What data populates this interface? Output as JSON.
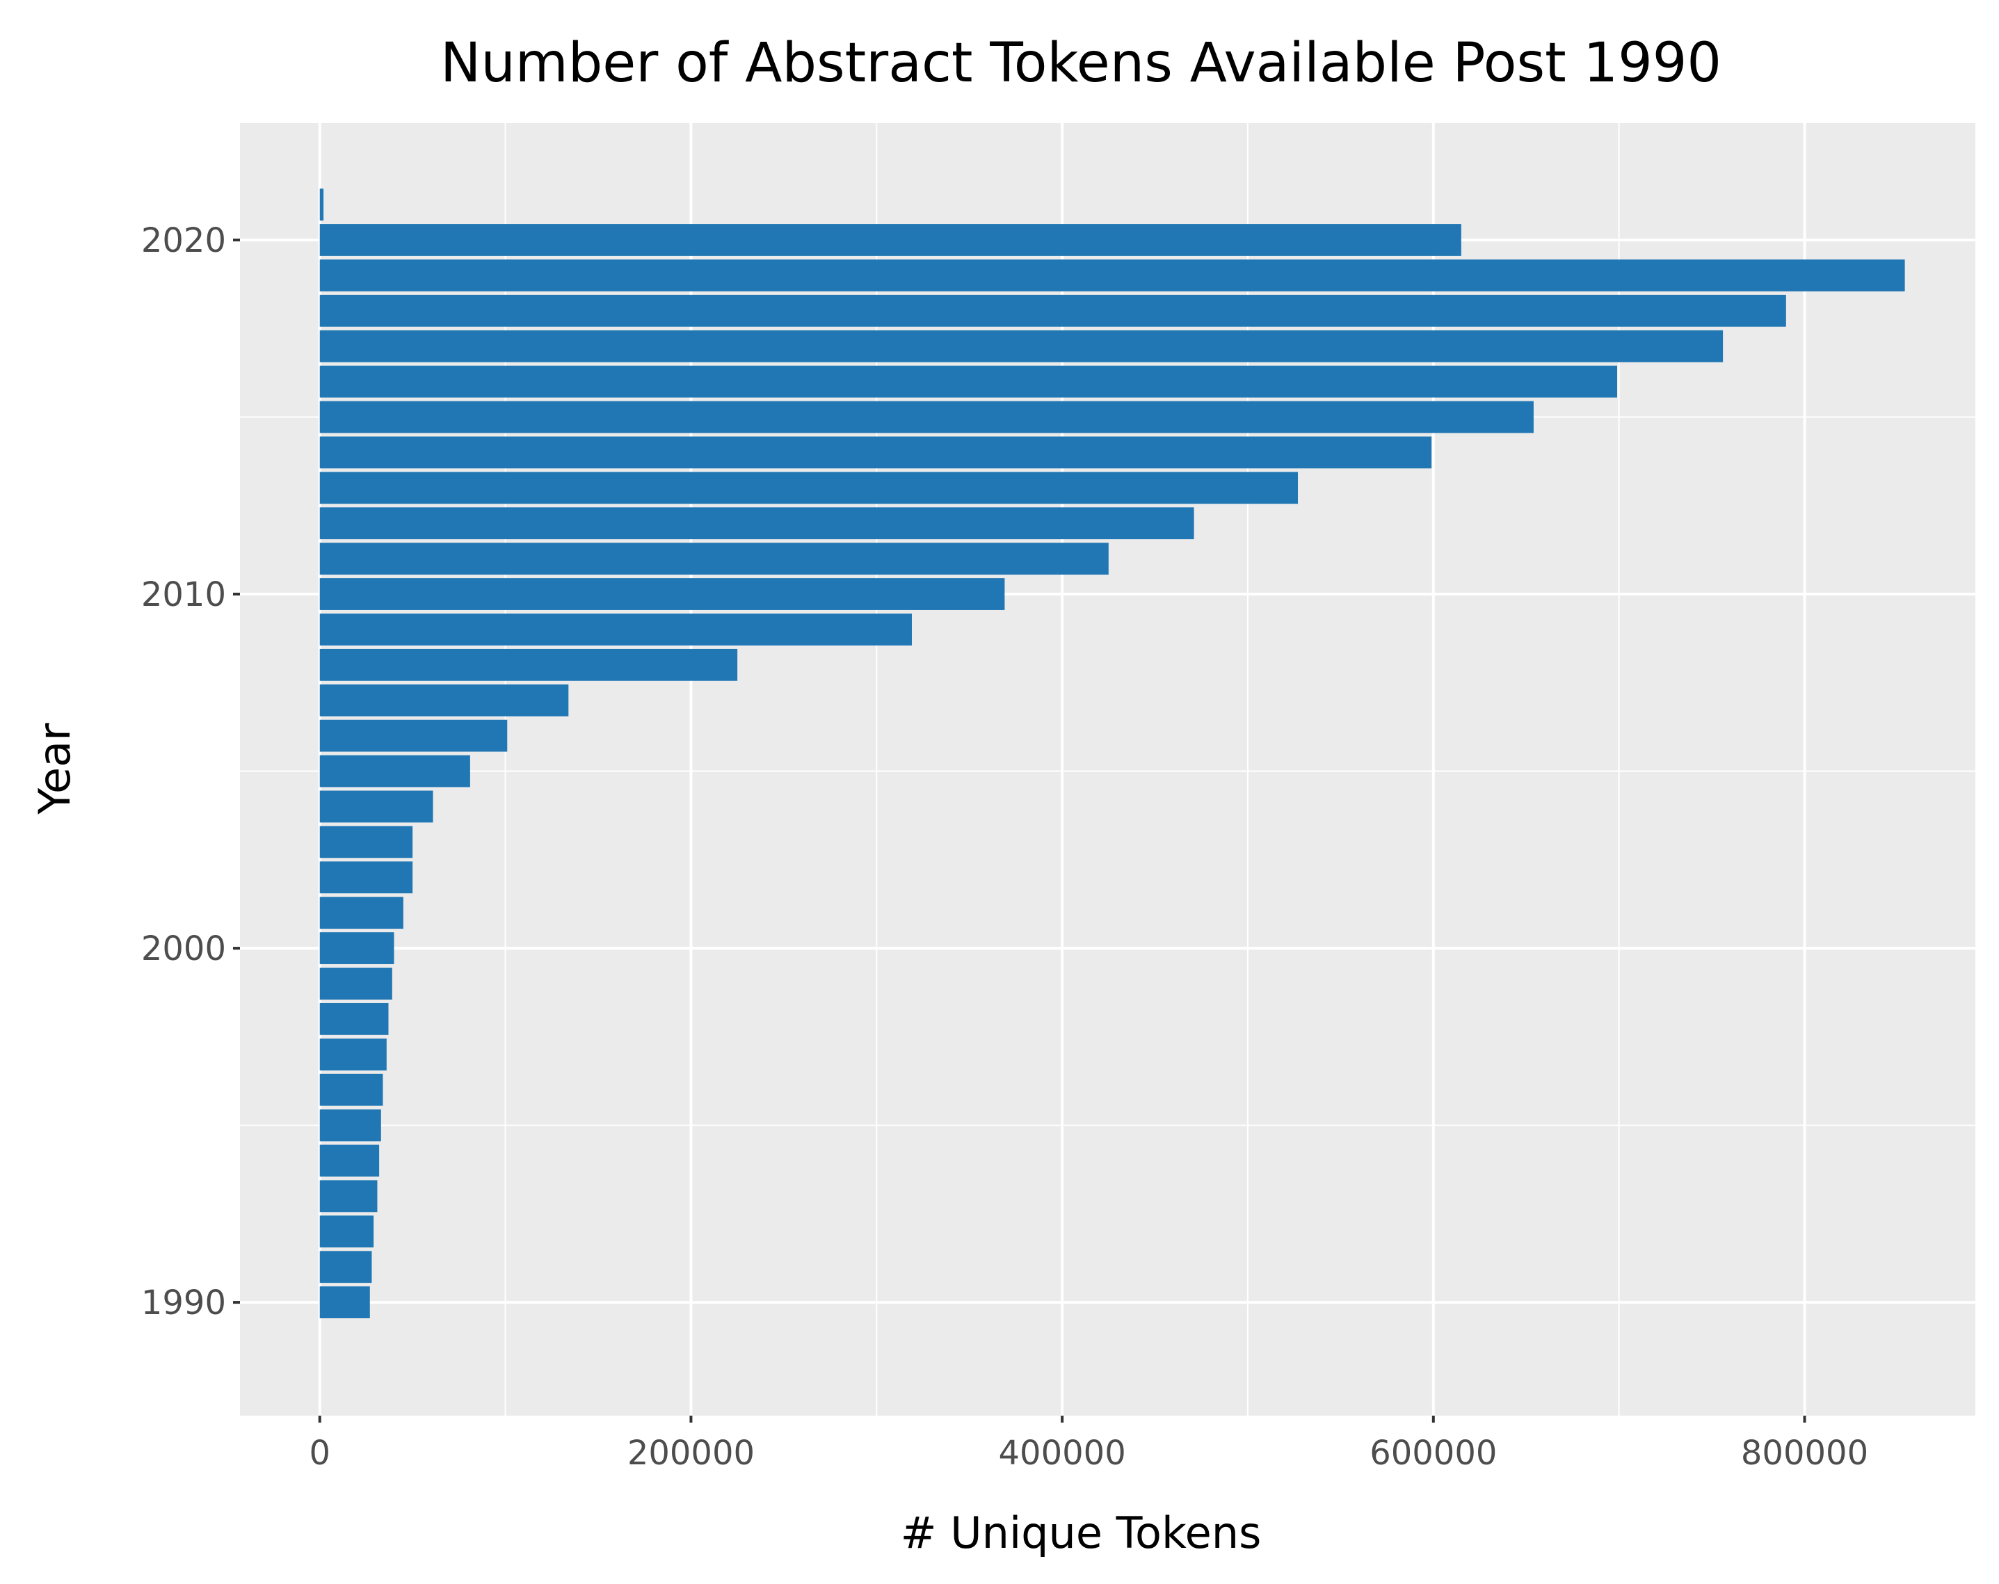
{
  "chart_data": {
    "type": "bar",
    "orientation": "horizontal",
    "title": "Number of Abstract Tokens Available Post 1990",
    "xlabel": "# Unique Tokens",
    "ylabel": "Year",
    "xlim": [
      -43000,
      892000
    ],
    "ylim": [
      1986.8,
      2023.3
    ],
    "x_ticks": [
      0,
      200000,
      400000,
      600000,
      800000
    ],
    "x_tick_labels": [
      "0",
      "200000",
      "400000",
      "600000",
      "800000"
    ],
    "y_ticks": [
      1990,
      2000,
      2010,
      2020
    ],
    "y_tick_labels": [
      "1990",
      "2000",
      "2010",
      "2020"
    ],
    "grid": true,
    "bar_color": "#2077b4",
    "panel_color": "#ebebeb",
    "categories": [
      1990,
      1991,
      1992,
      1993,
      1994,
      1995,
      1996,
      1997,
      1998,
      1999,
      2000,
      2001,
      2002,
      2003,
      2004,
      2005,
      2006,
      2007,
      2008,
      2009,
      2010,
      2011,
      2012,
      2013,
      2014,
      2015,
      2016,
      2017,
      2018,
      2019,
      2020,
      2021
    ],
    "values": [
      27000,
      28000,
      29000,
      31000,
      32000,
      33000,
      34000,
      36000,
      37000,
      39000,
      40000,
      45000,
      50000,
      50000,
      61000,
      81000,
      101000,
      134000,
      225000,
      319000,
      369000,
      425000,
      471000,
      527000,
      599000,
      654000,
      699000,
      756000,
      790000,
      854000,
      615000,
      2000
    ]
  }
}
